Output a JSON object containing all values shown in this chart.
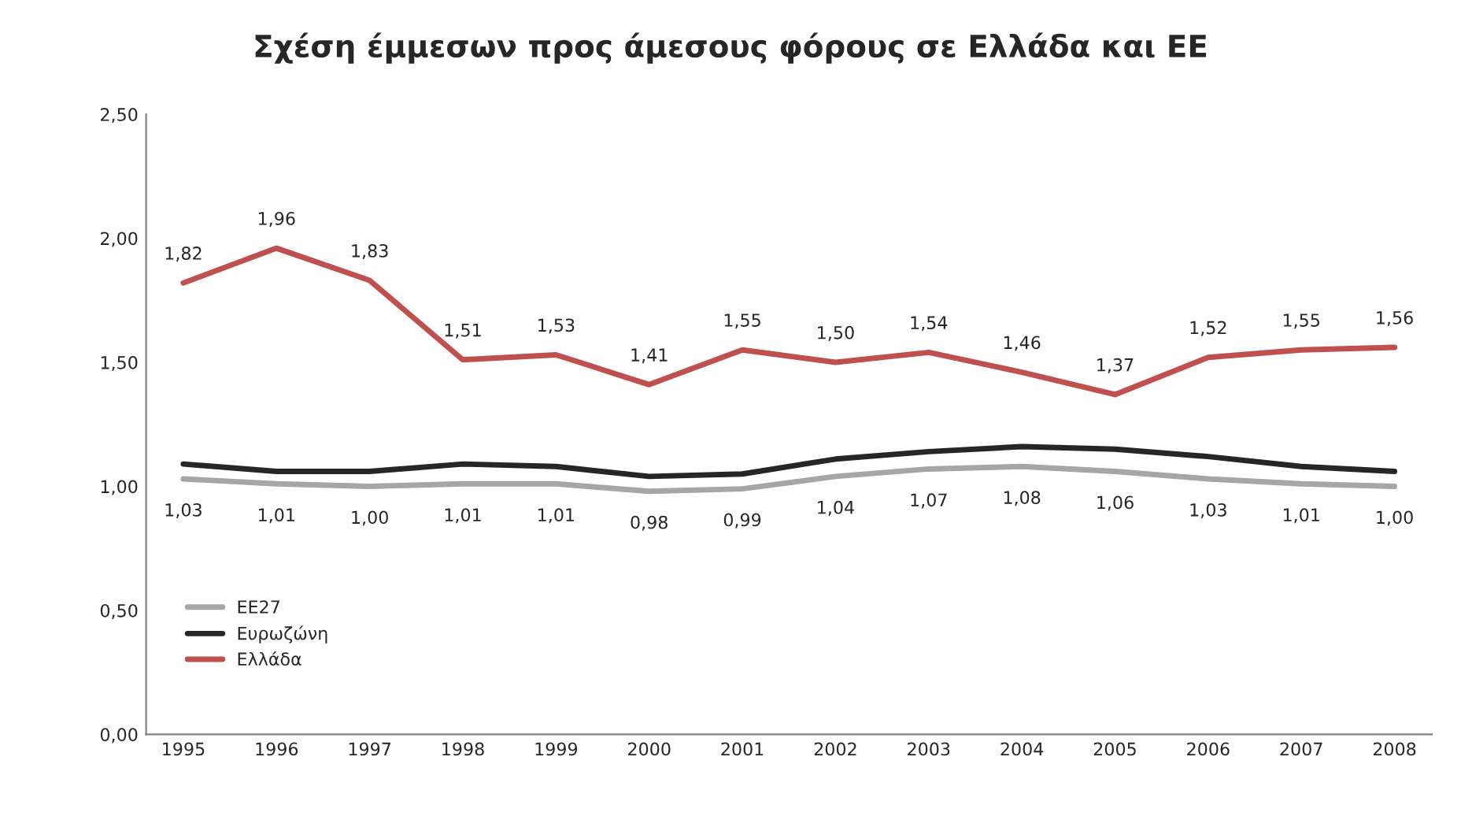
{
  "chart_data": {
    "type": "line",
    "title": "Σχέση έμμεσων προς άμεσους φόρους σε Ελλάδα και ΕΕ",
    "categories": [
      "1995",
      "1996",
      "1997",
      "1998",
      "1999",
      "2000",
      "2001",
      "2002",
      "2003",
      "2004",
      "2005",
      "2006",
      "2007",
      "2008"
    ],
    "series": [
      {
        "name": "ΕΕ27",
        "color": "#a6a6a6",
        "values": [
          1.03,
          1.01,
          1.0,
          1.01,
          1.01,
          0.98,
          0.99,
          1.04,
          1.07,
          1.08,
          1.06,
          1.03,
          1.01,
          1.0
        ],
        "value_labels": [
          "1,03",
          "1,01",
          "1,00",
          "1,01",
          "1,01",
          "0,98",
          "0,99",
          "1,04",
          "1,07",
          "1,08",
          "1,06",
          "1,03",
          "1,01",
          "1,00"
        ]
      },
      {
        "name": "Ευρωζώνη",
        "color": "#262626",
        "values": [
          1.09,
          1.06,
          1.06,
          1.09,
          1.08,
          1.04,
          1.05,
          1.11,
          1.14,
          1.16,
          1.15,
          1.12,
          1.08,
          1.06
        ]
      },
      {
        "name": "Ελλάδα",
        "color": "#c0504d",
        "values": [
          1.82,
          1.96,
          1.83,
          1.51,
          1.53,
          1.41,
          1.55,
          1.5,
          1.54,
          1.46,
          1.37,
          1.52,
          1.55,
          1.56
        ],
        "value_labels": [
          "1,82",
          "1,96",
          "1,83",
          "1,51",
          "1,53",
          "1,41",
          "1,55",
          "1,50",
          "1,54",
          "1,46",
          "1,37",
          "1,52",
          "1,55",
          "1,56"
        ]
      }
    ],
    "ylim": [
      0,
      2.5
    ],
    "yticks": [
      {
        "value": 0,
        "label": "0,00"
      },
      {
        "value": 0.5,
        "label": "0,50"
      },
      {
        "value": 1,
        "label": "1,00"
      },
      {
        "value": 1.5,
        "label": "1,50"
      },
      {
        "value": 2,
        "label": "2,00"
      },
      {
        "value": 2.5,
        "label": "2,50"
      }
    ],
    "grid": false,
    "legend": "bottom left",
    "marker": "none",
    "line_style": "solid"
  }
}
